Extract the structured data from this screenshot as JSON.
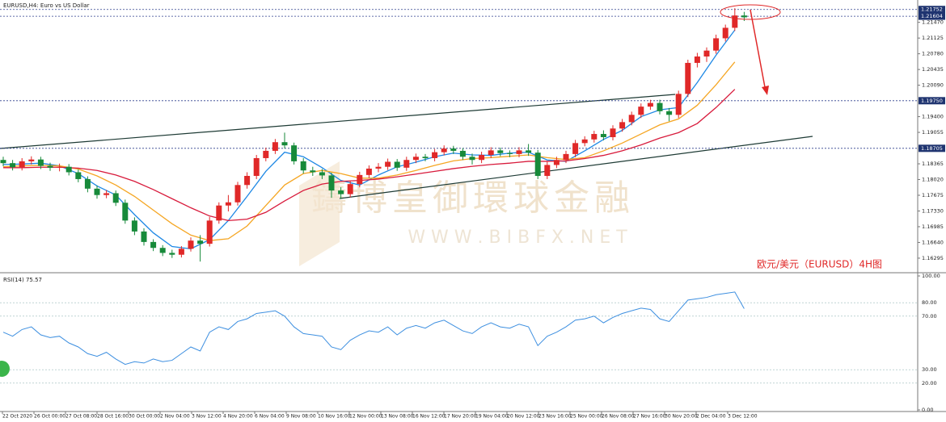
{
  "chart_data": {
    "type": "candlestick",
    "title": "EURUSD,H4: Euro vs US Dollar",
    "annotation": "欧元/美元（EURUSD）4H图",
    "watermark": "鑄博皇御環球金融",
    "watermark_url": "W W W . B I B F X . N E T",
    "up_color": "#e02828",
    "down_color": "#178a3a",
    "ylim": [
      1.15975,
      1.2196
    ],
    "yticks": [
      {
        "value": 1.2147,
        "label": "1.21470"
      },
      {
        "value": 1.21125,
        "label": "1.21125"
      },
      {
        "value": 1.2078,
        "label": "1.20780"
      },
      {
        "value": 1.20435,
        "label": "1.20435"
      },
      {
        "value": 1.2009,
        "label": "1.20090"
      },
      {
        "value": 1.194,
        "label": "1.19400"
      },
      {
        "value": 1.19055,
        "label": "1.19055"
      },
      {
        "value": 1.18365,
        "label": "1.18365"
      },
      {
        "value": 1.1802,
        "label": "1.18020"
      },
      {
        "value": 1.17675,
        "label": "1.17675"
      },
      {
        "value": 1.1733,
        "label": "1.17330"
      },
      {
        "value": 1.16985,
        "label": "1.16985"
      },
      {
        "value": 1.1664,
        "label": "1.16640"
      },
      {
        "value": 1.16295,
        "label": "1.16295"
      }
    ],
    "price_lines": [
      {
        "value": 1.21752,
        "label": "1.21752"
      },
      {
        "value": 1.21604,
        "label": "1.21604"
      },
      {
        "value": 1.1975,
        "label": "1.19750"
      },
      {
        "value": 1.18705,
        "label": "1.18705"
      }
    ],
    "time_labels": [
      "22 Oct 2020",
      "26 Oct 00:00",
      "27 Oct 08:00",
      "28 Oct 16:00",
      "30 Oct 00:00",
      "2 Nov 04:00",
      "3 Nov 12:00",
      "4 Nov 20:00",
      "6 Nov 04:00",
      "9 Nov 08:00",
      "10 Nov 16:00",
      "12 Nov 00:00",
      "13 Nov 08:00",
      "16 Nov 12:00",
      "17 Nov 20:00",
      "19 Nov 04:00",
      "20 Nov 12:00",
      "23 Nov 16:00",
      "25 Nov 00:00",
      "26 Nov 08:00",
      "27 Nov 16:00",
      "30 Nov 20:00",
      "2 Dec 04:00",
      "3 Dec 12:00"
    ],
    "open": [
      1.1845,
      1.1838,
      1.1829,
      1.1842,
      1.1846,
      1.1832,
      1.1828,
      1.183,
      1.1818,
      1.1803,
      1.1782,
      1.1768,
      1.1772,
      1.1751,
      1.1712,
      1.1688,
      1.1665,
      1.1652,
      1.1641,
      1.1637,
      1.165,
      1.1668,
      1.1661,
      1.1712,
      1.1745,
      1.1752,
      1.179,
      1.181,
      1.1849,
      1.1865,
      1.1884,
      1.1877,
      1.1842,
      1.1822,
      1.1818,
      1.1811,
      1.1778,
      1.177,
      1.1792,
      1.1812,
      1.1826,
      1.183,
      1.1841,
      1.1828,
      1.1845,
      1.1852,
      1.1849,
      1.1862,
      1.187,
      1.1865,
      1.1852,
      1.1845,
      1.1856,
      1.1866,
      1.186,
      1.1858,
      1.1866,
      1.1861,
      1.181,
      1.1834,
      1.1845,
      1.1858,
      1.1882,
      1.189,
      1.1902,
      1.1895,
      1.1914,
      1.1928,
      1.1944,
      1.1962,
      1.197,
      1.1952,
      1.1944,
      1.199,
      1.2058,
      1.2072,
      1.2085,
      1.2112,
      1.2135,
      1.2162
    ],
    "high": [
      1.1852,
      1.1845,
      1.1849,
      1.1853,
      1.1852,
      1.1839,
      1.1837,
      1.1836,
      1.1824,
      1.1809,
      1.1789,
      1.1779,
      1.1778,
      1.1758,
      1.1719,
      1.1695,
      1.1671,
      1.1658,
      1.1648,
      1.1656,
      1.1675,
      1.168,
      1.172,
      1.1752,
      1.1768,
      1.1797,
      1.1818,
      1.1856,
      1.1872,
      1.1891,
      1.1905,
      1.1883,
      1.1849,
      1.183,
      1.1825,
      1.1817,
      1.1785,
      1.1799,
      1.1819,
      1.1833,
      1.1838,
      1.1848,
      1.1847,
      1.1852,
      1.1859,
      1.1858,
      1.1869,
      1.1877,
      1.1876,
      1.1871,
      1.1859,
      1.1863,
      1.1873,
      1.1872,
      1.1866,
      1.1873,
      1.188,
      1.1867,
      1.1841,
      1.1852,
      1.1865,
      1.1889,
      1.1897,
      1.1909,
      1.191,
      1.1921,
      1.1935,
      1.1951,
      1.1969,
      1.1977,
      1.1977,
      1.1959,
      1.1997,
      1.2065,
      1.208,
      1.2092,
      1.212,
      1.2142,
      1.2178,
      1.217
    ],
    "low": [
      1.1831,
      1.1822,
      1.1822,
      1.1835,
      1.1825,
      1.1821,
      1.182,
      1.1811,
      1.1796,
      1.1774,
      1.176,
      1.1761,
      1.1744,
      1.1705,
      1.168,
      1.1657,
      1.1645,
      1.1634,
      1.163,
      1.1631,
      1.1644,
      1.1622,
      1.1655,
      1.1705,
      1.1732,
      1.1745,
      1.1782,
      1.1803,
      1.1842,
      1.1858,
      1.187,
      1.1835,
      1.1815,
      1.181,
      1.1803,
      1.1762,
      1.176,
      1.1763,
      1.1785,
      1.1805,
      1.1818,
      1.1823,
      1.1821,
      1.1821,
      1.1838,
      1.1842,
      1.1842,
      1.1855,
      1.1858,
      1.1845,
      1.1835,
      1.1838,
      1.1849,
      1.1853,
      1.1851,
      1.1851,
      1.1854,
      1.1803,
      1.1803,
      1.1827,
      1.1838,
      1.1851,
      1.1875,
      1.1883,
      1.1888,
      1.1888,
      1.1907,
      1.1921,
      1.1937,
      1.1955,
      1.1945,
      1.193,
      1.1937,
      1.1983,
      1.2048,
      1.206,
      1.2078,
      1.2105,
      1.2128,
      1.215
    ],
    "close": [
      1.1838,
      1.1829,
      1.1842,
      1.1846,
      1.1832,
      1.1828,
      1.183,
      1.1818,
      1.1803,
      1.1782,
      1.1768,
      1.1772,
      1.1751,
      1.1712,
      1.1688,
      1.1665,
      1.1652,
      1.1641,
      1.1637,
      1.165,
      1.1668,
      1.1661,
      1.1712,
      1.1745,
      1.1752,
      1.179,
      1.181,
      1.1849,
      1.1865,
      1.1884,
      1.1877,
      1.1842,
      1.1822,
      1.1818,
      1.1811,
      1.1778,
      1.177,
      1.1792,
      1.1812,
      1.1826,
      1.183,
      1.1841,
      1.1828,
      1.1845,
      1.1852,
      1.1849,
      1.1862,
      1.187,
      1.1865,
      1.1852,
      1.1845,
      1.1856,
      1.1866,
      1.186,
      1.1858,
      1.1866,
      1.1861,
      1.181,
      1.1834,
      1.1845,
      1.1858,
      1.1882,
      1.189,
      1.1902,
      1.1895,
      1.1914,
      1.1928,
      1.1944,
      1.1962,
      1.197,
      1.1952,
      1.1944,
      1.199,
      1.2058,
      1.2072,
      1.2085,
      1.2112,
      1.2135,
      1.2162,
      1.2158
    ],
    "moving_averages": [
      {
        "color": "#1e88e5",
        "values": [
          1.1835,
          1.1836,
          1.1838,
          1.1832,
          1.1815,
          1.1788,
          1.1768,
          1.1725,
          1.1685,
          1.1655,
          1.165,
          1.167,
          1.1712,
          1.1765,
          1.182,
          1.1862,
          1.1852,
          1.1828,
          1.18,
          1.179,
          1.1812,
          1.183,
          1.184,
          1.1852,
          1.186,
          1.1856,
          1.1855,
          1.186,
          1.1862,
          1.1845,
          1.1842,
          1.1865,
          1.189,
          1.191,
          1.194,
          1.1955,
          1.196,
          1.2015,
          1.2075,
          1.213
        ]
      },
      {
        "color": "#f5a623",
        "values": [
          1.183,
          1.1832,
          1.1833,
          1.1832,
          1.1825,
          1.181,
          1.179,
          1.1765,
          1.1735,
          1.1705,
          1.168,
          1.1668,
          1.1672,
          1.17,
          1.1745,
          1.179,
          1.1815,
          1.1822,
          1.1815,
          1.1805,
          1.1805,
          1.1812,
          1.1822,
          1.1833,
          1.1843,
          1.1848,
          1.185,
          1.1853,
          1.1856,
          1.185,
          1.1846,
          1.185,
          1.1865,
          1.1882,
          1.1902,
          1.1922,
          1.1935,
          1.1965,
          1.201,
          1.206
        ]
      },
      {
        "color": "#d81b3c",
        "values": [
          1.1828,
          1.1828,
          1.1829,
          1.1829,
          1.1827,
          1.1822,
          1.1812,
          1.1798,
          1.178,
          1.176,
          1.174,
          1.1722,
          1.1712,
          1.1715,
          1.173,
          1.1755,
          1.1778,
          1.1792,
          1.1798,
          1.18,
          1.1803,
          1.1808,
          1.1814,
          1.182,
          1.1826,
          1.1831,
          1.1835,
          1.1838,
          1.1842,
          1.1842,
          1.1843,
          1.1848,
          1.1855,
          1.1865,
          1.1878,
          1.1893,
          1.1905,
          1.1925,
          1.196,
          1.2
        ]
      }
    ],
    "rsi": {
      "title": "RSI(14) 75.57",
      "color": "#3d8fe0",
      "ylim": [
        0,
        100
      ],
      "yticks": [
        {
          "value": 100,
          "label": "100.00"
        },
        {
          "value": 80,
          "label": "80.00"
        },
        {
          "value": 70,
          "label": "70.00"
        },
        {
          "value": 30,
          "label": "30.00"
        },
        {
          "value": 20,
          "label": "20.00"
        },
        {
          "value": 0,
          "label": "0.00"
        }
      ],
      "values": [
        58,
        55,
        60,
        62,
        56,
        54,
        55,
        50,
        47,
        42,
        40,
        43,
        38,
        34,
        36,
        35,
        38,
        36,
        37,
        42,
        47,
        44,
        58,
        62,
        60,
        66,
        68,
        72,
        73,
        74,
        70,
        62,
        57,
        56,
        55,
        47,
        45,
        52,
        56,
        59,
        58,
        62,
        56,
        61,
        63,
        61,
        65,
        67,
        63,
        59,
        57,
        62,
        65,
        62,
        61,
        64,
        62,
        48,
        55,
        58,
        62,
        67,
        68,
        70,
        65,
        69,
        72,
        74,
        76,
        75,
        68,
        66,
        74,
        82,
        83,
        84,
        86,
        87,
        88,
        75.57
      ]
    }
  }
}
